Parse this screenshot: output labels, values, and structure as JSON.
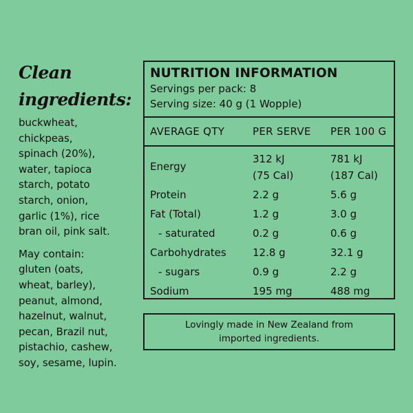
{
  "ingredients": {
    "heading": [
      "Clean",
      "ingredients:"
    ],
    "list_lines": [
      "buckwheat,",
      "chickpeas,",
      "spinach (20%),",
      "water, tapioca",
      "starch, potato",
      "starch, onion,",
      "garlic (1%), rice",
      "bran oil, pink salt."
    ],
    "allergens_lines": [
      "May contain:",
      "gluten (oats,",
      "wheat, barley),",
      "peanut, almond,",
      "hazelnut, walnut,",
      "pecan, Brazil nut,",
      "pistachio, cashew,",
      "soy, sesame, lupin."
    ]
  },
  "nutrition": {
    "title": "NUTRITION INFORMATION",
    "servings_per_pack": "Servings per pack: 8",
    "serving_size": "Serving size: 40 g (1 Wopple)",
    "headers": [
      "AVERAGE QTY",
      "PER SERVE",
      "PER 100 G"
    ],
    "rows": [
      {
        "label": "Energy",
        "serve": [
          "312 kJ",
          "(75 Cal)"
        ],
        "per100": [
          "781 kJ",
          "(187 Cal)"
        ]
      },
      {
        "label": "Protein",
        "serve": "2.2 g",
        "per100": "5.6 g"
      },
      {
        "label": "Fat (Total)",
        "serve": "1.2 g",
        "per100": "3.0 g"
      },
      {
        "label": "- saturated",
        "serve": "0.2 g",
        "per100": "0.6 g"
      },
      {
        "label": "Carbohydrates",
        "serve": "12.8 g",
        "per100": "32.1 g"
      },
      {
        "label": "- sugars",
        "serve": "0.9 g",
        "per100": "2.2 g"
      },
      {
        "label": "Sodium",
        "serve": "195 mg",
        "per100": "488 mg"
      }
    ]
  },
  "origin_lines": [
    "Lovingly made in New Zealand from",
    "imported ingredients."
  ]
}
